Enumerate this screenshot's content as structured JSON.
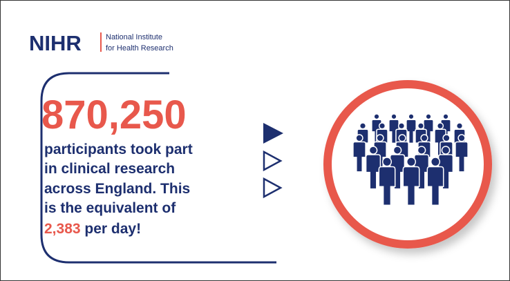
{
  "logo": {
    "acronym": "NIHR",
    "line1": "National Institute",
    "line2": "for Health Research"
  },
  "headline": "870,250",
  "body": {
    "lines": [
      "participants took part",
      "in clinical research",
      "across England. This",
      "is the equivalent of"
    ],
    "highlight": "2,383",
    "ending": "per day!"
  }
}
